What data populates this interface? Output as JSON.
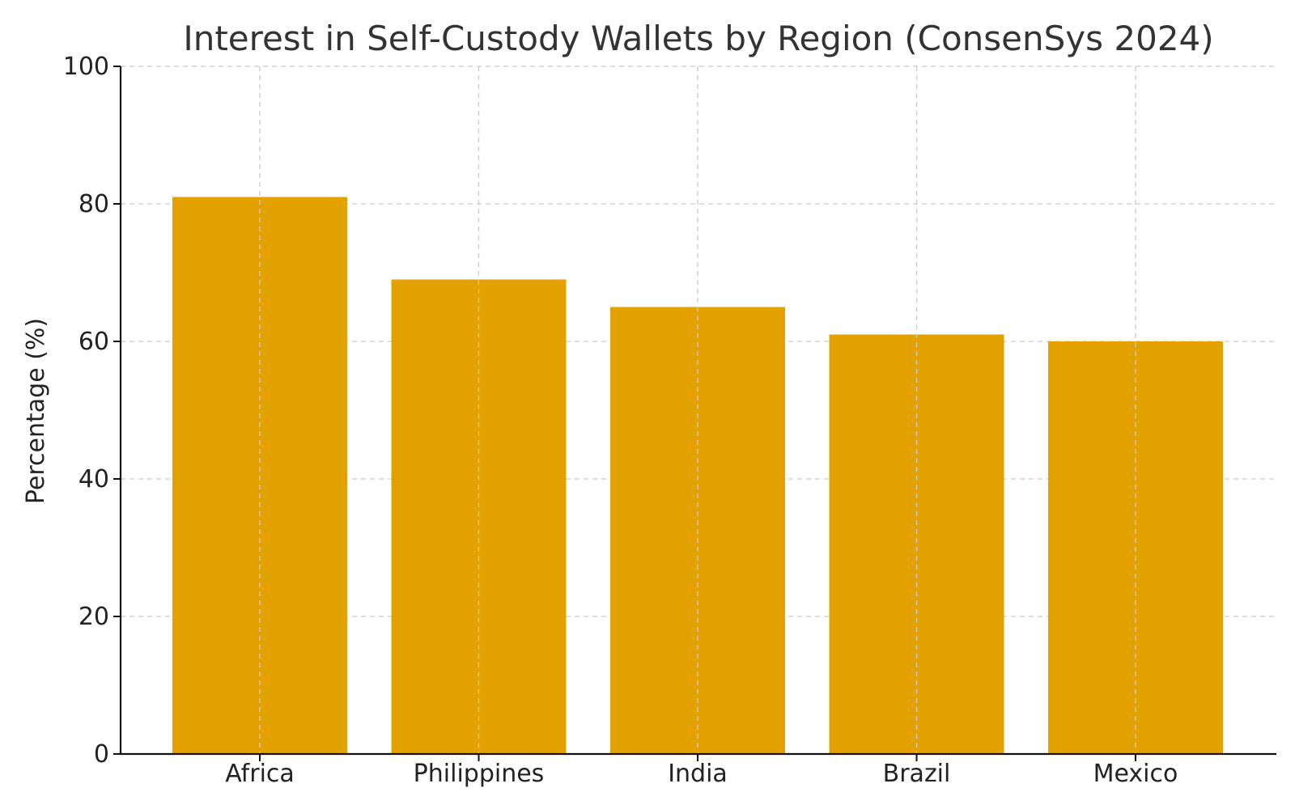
{
  "chart_data": {
    "type": "bar",
    "title": "Interest in Self-Custody Wallets by Region (ConsenSys 2024)",
    "xlabel": "",
    "ylabel": "Percentage (%)",
    "categories": [
      "Africa",
      "Philippines",
      "India",
      "Brazil",
      "Mexico"
    ],
    "values": [
      81,
      69,
      65,
      61,
      60
    ],
    "ylim": [
      0,
      100
    ],
    "yticks": [
      0,
      20,
      40,
      60,
      80,
      100
    ],
    "grid": true,
    "bar_color": "#E3A200",
    "legend": "none"
  }
}
